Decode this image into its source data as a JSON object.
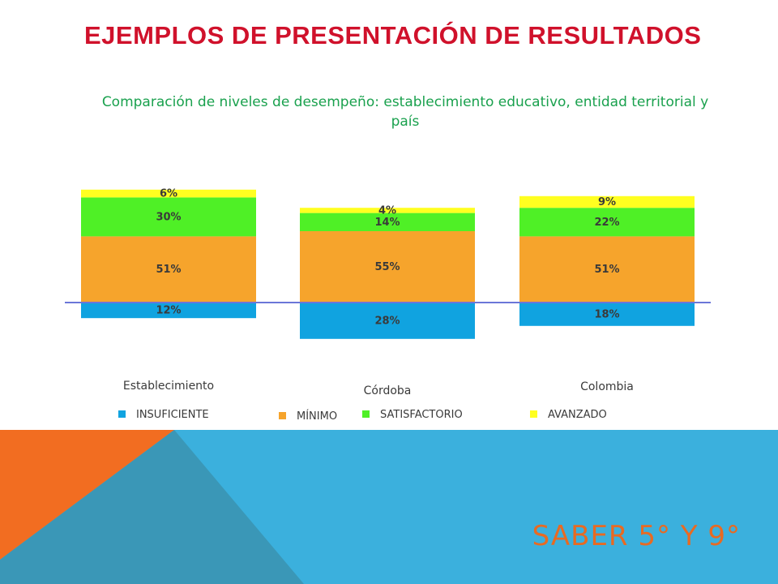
{
  "slide": {
    "title": "EJEMPLOS DE PRESENTACIÓN DE RESULTADOS",
    "footer": "SABER 5° Y 9°"
  },
  "chart_data": {
    "type": "bar",
    "stacked": true,
    "diverging": true,
    "title": "Comparación de niveles de desempeño: establecimiento educativo, entidad territorial y país",
    "categories": [
      "Establecimiento",
      "Córdoba",
      "Colombia"
    ],
    "series": [
      {
        "name": "INSUFICIENTE",
        "values": [
          12,
          28,
          18
        ],
        "color": "#10a3e0",
        "direction": "below"
      },
      {
        "name": "MÍNIMO",
        "values": [
          51,
          55,
          51
        ],
        "color": "#f6a42c",
        "direction": "above"
      },
      {
        "name": "SATISFACTORIO",
        "values": [
          30,
          14,
          22
        ],
        "color": "#4ff026",
        "direction": "above"
      },
      {
        "name": "AVANZADO",
        "values": [
          6,
          4,
          9
        ],
        "color": "#ffff20",
        "direction": "above"
      }
    ],
    "labels_suffix": "%",
    "grid": false,
    "legend_position": "bottom",
    "baseline_color": "#6b76d8"
  },
  "colors": {
    "title": "#d0112b",
    "subtitle": "#1aa14e",
    "footer_text": "#e86a22",
    "footer_blue": "#3bb0dd",
    "footer_orange": "#f26d21",
    "footer_dark": "#3a97b7"
  }
}
